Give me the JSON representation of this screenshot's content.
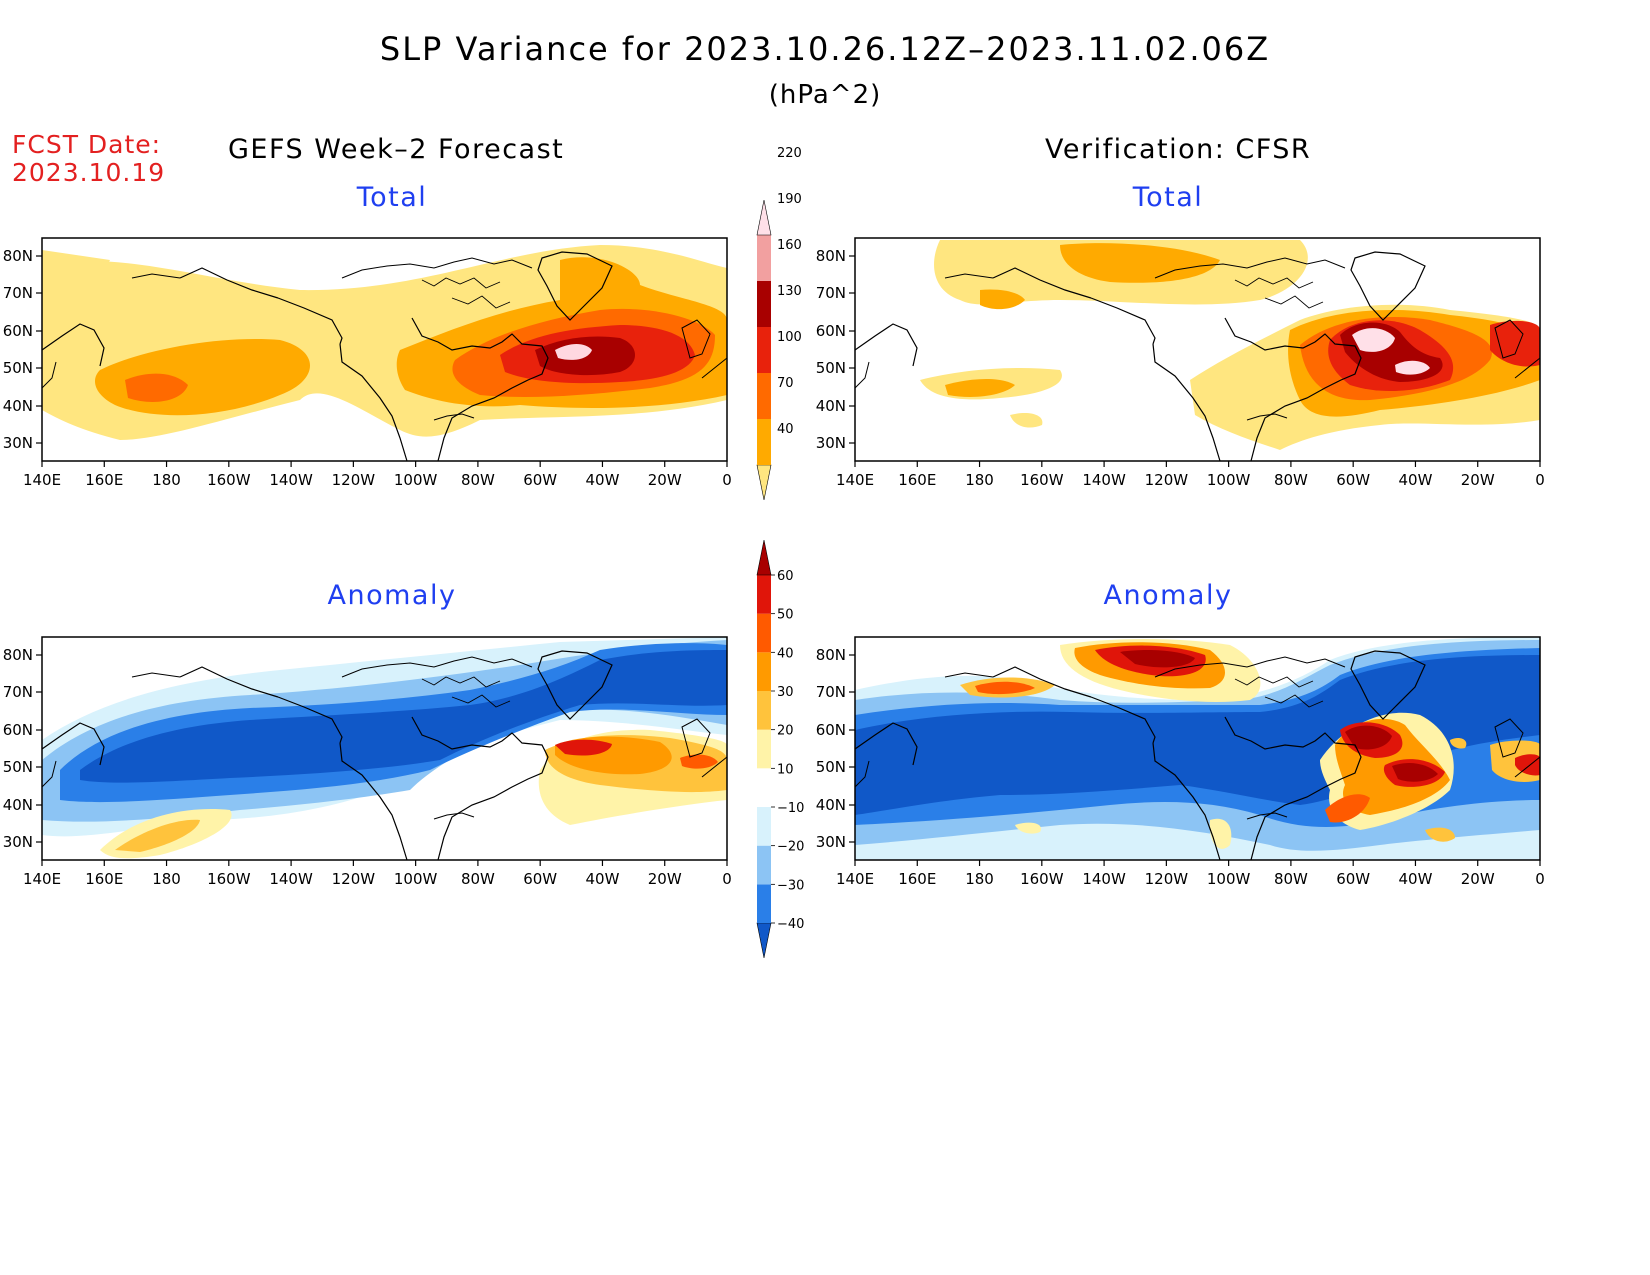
{
  "title": "SLP Variance for 2023.10.26.12Z–2023.11.02.06Z",
  "units": "(hPa^2)",
  "fcst_date_label": "FCST Date:",
  "fcst_date": "2023.10.19",
  "left_header": "GEFS Week–2 Forecast",
  "right_header": "Verification: CFSR",
  "panels": {
    "tl": {
      "label": "Total"
    },
    "tr": {
      "label": "Total"
    },
    "bl": {
      "label": "Anomaly"
    },
    "br": {
      "label": "Anomaly"
    }
  },
  "lat_labels": [
    "80N",
    "70N",
    "60N",
    "50N",
    "40N",
    "30N"
  ],
  "lon_labels": [
    "140E",
    "160E",
    "180",
    "160W",
    "140W",
    "120W",
    "100W",
    "80W",
    "60W",
    "40W",
    "20W",
    "0"
  ],
  "colorbars": {
    "total": {
      "levels": [
        "40",
        "70",
        "100",
        "130",
        "160",
        "190",
        "220"
      ],
      "colors": [
        "#ffe680",
        "#ffaa00",
        "#ff6a00",
        "#e8220c",
        "#a80000",
        "#f2a0a0",
        "#ffe0e8"
      ]
    },
    "anomaly": {
      "levels": [
        "−40",
        "−30",
        "−20",
        "−10",
        "10",
        "20",
        "30",
        "40",
        "50",
        "60"
      ],
      "colors": [
        "#1058c8",
        "#2a7fe8",
        "#8cc4f4",
        "#d8f2fc",
        "#ffffff",
        "#fff3a8",
        "#ffc33c",
        "#ff9a00",
        "#ff5a00",
        "#e0150a",
        "#a80000"
      ]
    }
  }
}
